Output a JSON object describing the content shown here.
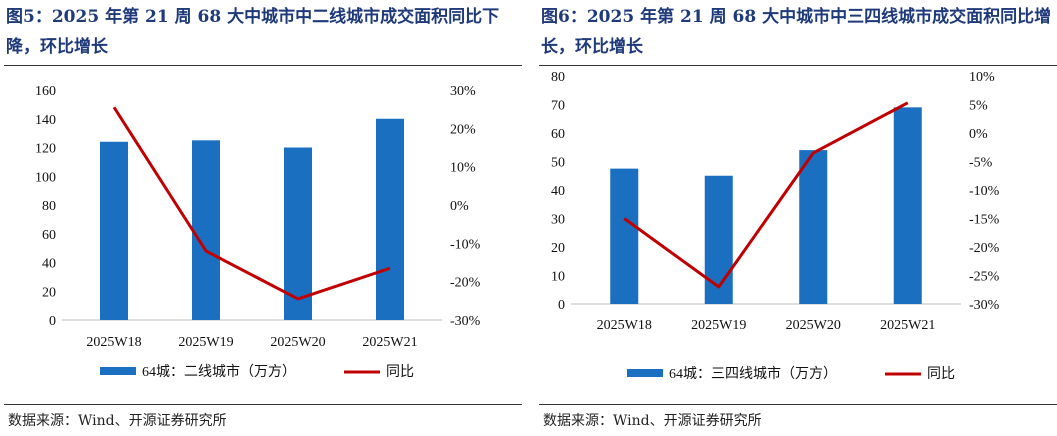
{
  "chart_data": [
    {
      "type": "bar+line",
      "title_prefix": "图5：",
      "title": "2025 年第 21 周 68 大中城市中二线城市成交面积同比下降，环比增长",
      "categories": [
        "2025W18",
        "2025W19",
        "2025W20",
        "2025W21"
      ],
      "series": [
        {
          "name": "64城：二线城市（万方）",
          "kind": "bar",
          "axis": "left",
          "color": "#1a6fc0",
          "values": [
            124,
            125,
            120,
            140
          ]
        },
        {
          "name": "同比",
          "kind": "line",
          "axis": "right",
          "color": "#c00000",
          "values": [
            25.5,
            -12,
            -24.5,
            -16.5
          ]
        }
      ],
      "left_axis": {
        "min": 0,
        "max": 160,
        "step": 20,
        "tick_labels": [
          "0",
          "20",
          "40",
          "60",
          "80",
          "100",
          "120",
          "140",
          "160"
        ]
      },
      "right_axis": {
        "min": -30,
        "max": 30,
        "step": 10,
        "tick_labels": [
          "-30%",
          "-20%",
          "-10%",
          "0%",
          "10%",
          "20%",
          "30%"
        ]
      },
      "legend": {
        "bar": "64城：二线城市（万方）",
        "line": "同比"
      },
      "source": "数据来源：Wind、开源证券研究所"
    },
    {
      "type": "bar+line",
      "title_prefix": "图6：",
      "title": "2025 年第 21 周 68 大中城市中三四线城市成交面积同比增长，环比增长",
      "categories": [
        "2025W18",
        "2025W19",
        "2025W20",
        "2025W21"
      ],
      "series": [
        {
          "name": "64城：三四线城市（万方）",
          "kind": "bar",
          "axis": "left",
          "color": "#1a6fc0",
          "values": [
            47.5,
            45,
            54,
            69
          ]
        },
        {
          "name": "同比",
          "kind": "line",
          "axis": "right",
          "color": "#c00000",
          "values": [
            -15,
            -27,
            -3.5,
            5.3
          ]
        }
      ],
      "left_axis": {
        "min": 0,
        "max": 80,
        "step": 10,
        "tick_labels": [
          "0",
          "10",
          "20",
          "30",
          "40",
          "50",
          "60",
          "70",
          "80"
        ]
      },
      "right_axis": {
        "min": -30,
        "max": 10,
        "step": 5,
        "tick_labels": [
          "-30%",
          "-25%",
          "-20%",
          "-15%",
          "-10%",
          "-5%",
          "0%",
          "5%",
          "10%"
        ]
      },
      "legend": {
        "bar": "64城：三四线城市（万方）",
        "line": "同比"
      },
      "source": "数据来源：Wind、开源证券研究所"
    }
  ]
}
